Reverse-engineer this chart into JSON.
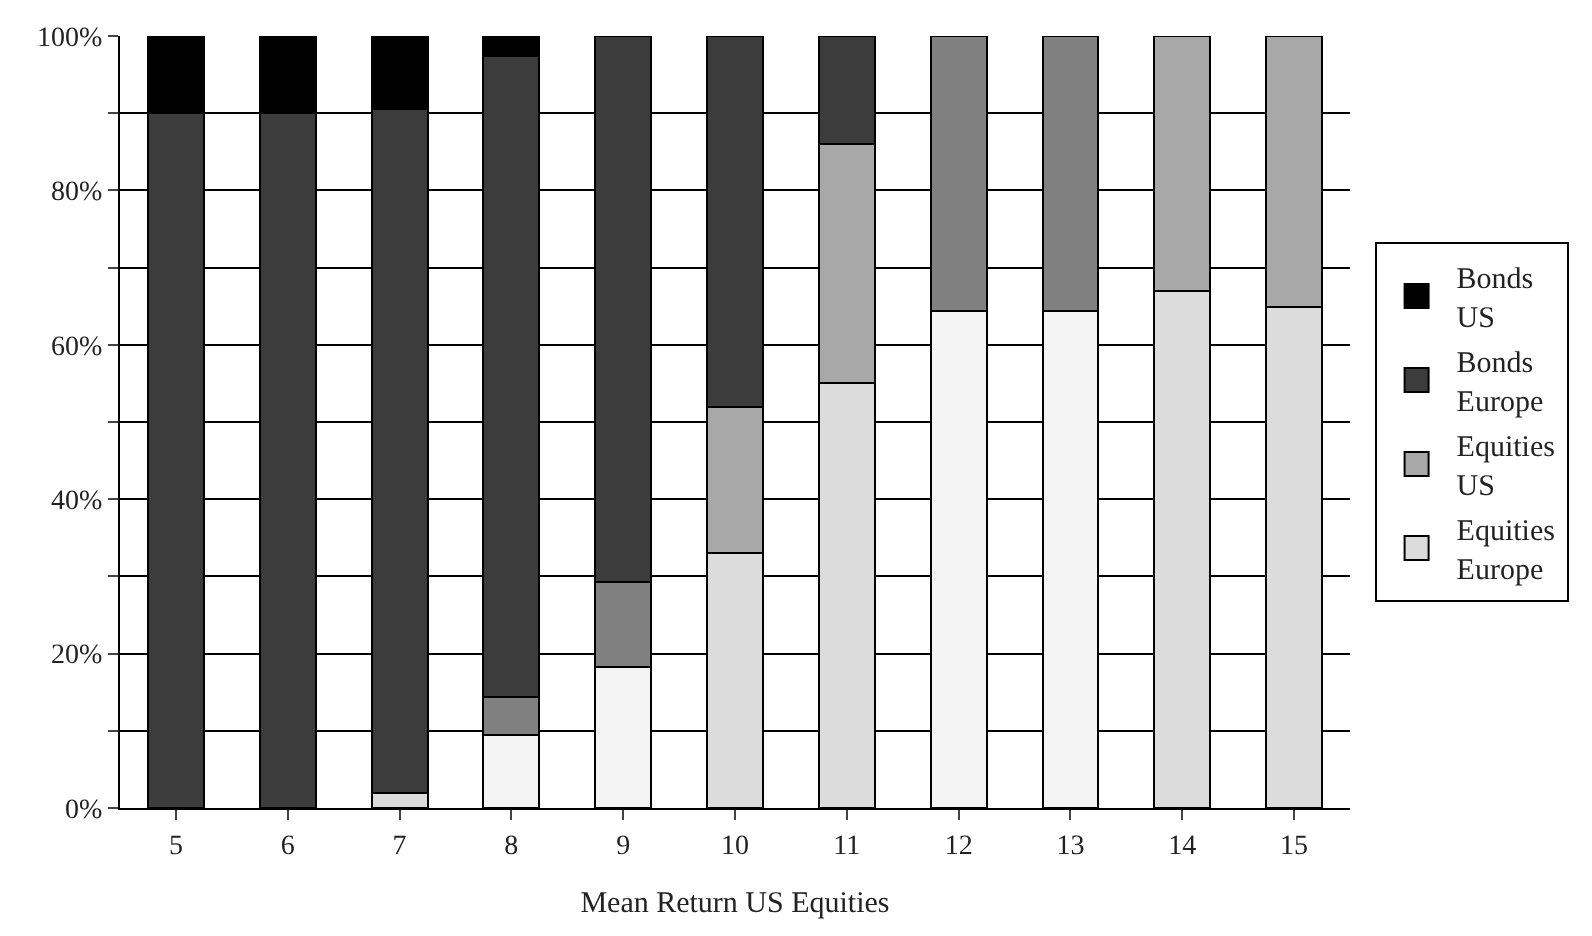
{
  "chart_data": {
    "type": "bar",
    "stacked": true,
    "xlabel": "Mean Return US Equities",
    "categories": [
      "5",
      "6",
      "7",
      "8",
      "9",
      "10",
      "11",
      "12",
      "13",
      "14",
      "15"
    ],
    "series": [
      {
        "name": "Equities Europe",
        "color": "#dcdcdc",
        "values": [
          null,
          null,
          2.0,
          null,
          null,
          33.0,
          55.1,
          null,
          null,
          67.0,
          64.9
        ]
      },
      {
        "color": "#f4f4f4",
        "values": [
          null,
          null,
          null,
          9.5,
          18.3,
          null,
          null,
          64.4,
          64.4,
          null,
          null
        ]
      },
      {
        "color": "#808080",
        "values": [
          null,
          null,
          null,
          4.9,
          11.0,
          null,
          null,
          35.6,
          35.6,
          null,
          null
        ]
      },
      {
        "name": "Equities US",
        "color": "#a8a8a8",
        "values": [
          null,
          null,
          null,
          null,
          null,
          19.0,
          30.9,
          null,
          null,
          33.0,
          35.1
        ]
      },
      {
        "name": "Bonds Europe",
        "color": "#3c3c3c",
        "values": [
          90.0,
          90.0,
          88.6,
          83.0,
          70.7,
          48.0,
          14.0,
          null,
          null,
          null,
          null
        ]
      },
      {
        "name": "Bonds US",
        "color": "#000000",
        "values": [
          10.0,
          10.0,
          9.4,
          2.6,
          null,
          null,
          null,
          null,
          null,
          null,
          null
        ]
      }
    ],
    "ylim": [
      0,
      100
    ],
    "yticks": [
      {
        "value": 0,
        "label": "0%"
      },
      {
        "value": 10,
        "label": null
      },
      {
        "value": 20,
        "label": "20%"
      },
      {
        "value": 30,
        "label": null
      },
      {
        "value": 40,
        "label": "40%"
      },
      {
        "value": 50,
        "label": null
      },
      {
        "value": 60,
        "label": "60%"
      },
      {
        "value": 70,
        "label": null
      },
      {
        "value": 80,
        "label": "80%"
      },
      {
        "value": 90,
        "label": null
      },
      {
        "value": 100,
        "label": "100%"
      }
    ],
    "grid": "y",
    "legend": "right"
  }
}
